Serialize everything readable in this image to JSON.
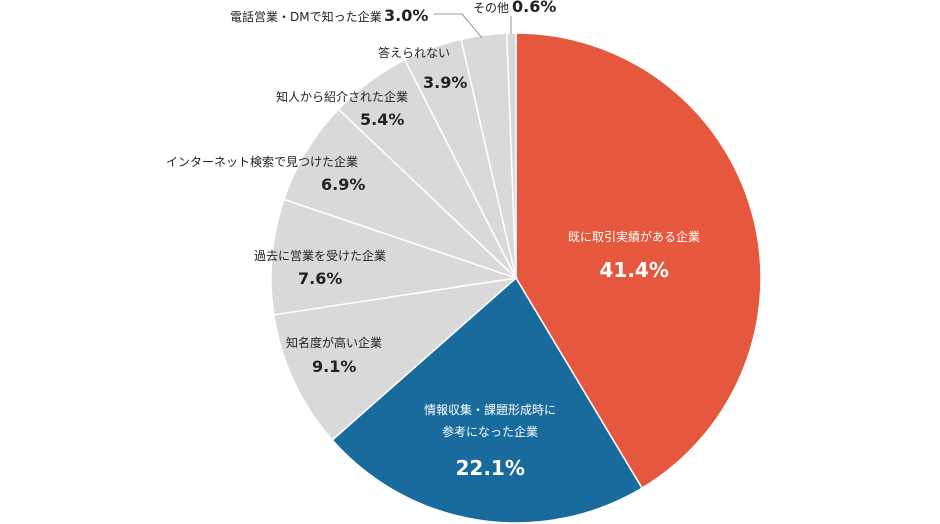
{
  "chart_data": {
    "type": "pie",
    "categories": [
      "既に取引実績がある企業",
      "情報収集・課題形成時に\n参考になった企業",
      "知名度が高い企業",
      "過去に営業を受けた企業",
      "インターネット検索で見つけた企業",
      "知人から紹介された企業",
      "答えられない",
      "電話営業・DMで知った企業",
      "その他"
    ],
    "values": [
      41.4,
      22.1,
      9.1,
      7.6,
      6.9,
      5.4,
      3.9,
      3.0,
      0.6
    ],
    "value_labels": [
      "41.4%",
      "22.1%",
      "9.1%",
      "7.6%",
      "6.9%",
      "5.4%",
      "3.9%",
      "3.0%",
      "0.6%"
    ],
    "colors": [
      "#e5583e",
      "#186b9c",
      "#d9d9d9",
      "#d9d9d9",
      "#d9d9d9",
      "#d9d9d9",
      "#d9d9d9",
      "#d9d9d9",
      "#d9d9d9"
    ]
  }
}
